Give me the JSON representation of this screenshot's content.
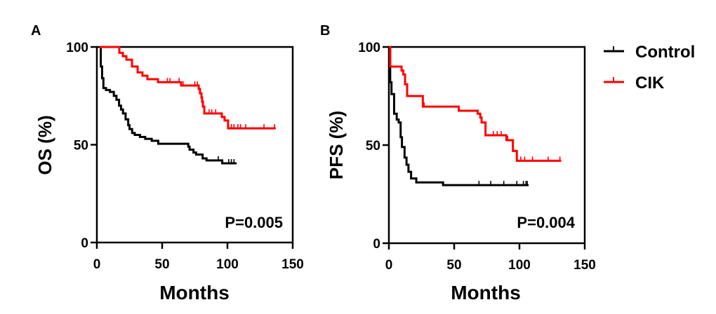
{
  "legend": {
    "items": [
      {
        "label": "Control",
        "color": "#000000"
      },
      {
        "label": "CIK",
        "color": "#ff0000"
      }
    ]
  },
  "chart_data": [
    {
      "type": "line",
      "subtype": "kaplan-meier step",
      "panel_label": "A",
      "title": "",
      "xlabel": "Months",
      "ylabel": "OS (%)",
      "xlim": [
        0,
        150
      ],
      "ylim": [
        0,
        100
      ],
      "xticks": [
        0,
        50,
        100,
        150
      ],
      "yticks": [
        0,
        50,
        100
      ],
      "grid": false,
      "annotation": "P=0.005",
      "series": [
        {
          "name": "Control",
          "color": "#000000",
          "points": [
            [
              2,
              100
            ],
            [
              3,
              90
            ],
            [
              4,
              84
            ],
            [
              5,
              79
            ],
            [
              7,
              78
            ],
            [
              10,
              77
            ],
            [
              13,
              75
            ],
            [
              15,
              73
            ],
            [
              17,
              70
            ],
            [
              18.5,
              68
            ],
            [
              20,
              66
            ],
            [
              22,
              63
            ],
            [
              24,
              60
            ],
            [
              25,
              58
            ],
            [
              27,
              56
            ],
            [
              29,
              55
            ],
            [
              33,
              54
            ],
            [
              37,
              53
            ],
            [
              42,
              52
            ],
            [
              47,
              50.5
            ],
            [
              70,
              49
            ],
            [
              71,
              47.5
            ],
            [
              74,
              46
            ],
            [
              76,
              45
            ],
            [
              81,
              43
            ],
            [
              84,
              42
            ],
            [
              96,
              40.5
            ],
            [
              107,
              40.5
            ]
          ],
          "censor_ticks": [
            93,
            101,
            103,
            105
          ]
        },
        {
          "name": "CIK",
          "color": "#ff0000",
          "points": [
            [
              2,
              100
            ],
            [
              15.6,
              100
            ],
            [
              17.2,
              97
            ],
            [
              19.9,
              95.3
            ],
            [
              22.6,
              93.5
            ],
            [
              26.9,
              90
            ],
            [
              31.2,
              87
            ],
            [
              34.9,
              85.3
            ],
            [
              38.7,
              83.5
            ],
            [
              46.8,
              82
            ],
            [
              64.5,
              80.3
            ],
            [
              78,
              78.5
            ],
            [
              79,
              76.3
            ],
            [
              80.1,
              74.2
            ],
            [
              80.6,
              72
            ],
            [
              81.2,
              69.5
            ],
            [
              82.3,
              66
            ],
            [
              95.7,
              64.2
            ],
            [
              97.8,
              62.4
            ],
            [
              100.5,
              58.4
            ],
            [
              137,
              58.4
            ]
          ],
          "censor_ticks": [
            54,
            56,
            63,
            66,
            75,
            77,
            86,
            88,
            91,
            103,
            105,
            108,
            110,
            114,
            128,
            136
          ]
        }
      ]
    },
    {
      "type": "line",
      "subtype": "kaplan-meier step",
      "panel_label": "B",
      "title": "",
      "xlabel": "Months",
      "ylabel": "PFS (%)",
      "xlim": [
        0,
        150
      ],
      "ylim": [
        0,
        100
      ],
      "xticks": [
        0,
        50,
        100,
        150
      ],
      "yticks": [
        0,
        50,
        100
      ],
      "grid": false,
      "annotation": "P=0.004",
      "series": [
        {
          "name": "Control",
          "color": "#000000",
          "points": [
            [
              0,
              100
            ],
            [
              1,
              82
            ],
            [
              2,
              76
            ],
            [
              4,
              66
            ],
            [
              6,
              63
            ],
            [
              7.5,
              61.5
            ],
            [
              9,
              54
            ],
            [
              10,
              49
            ],
            [
              12,
              43.6
            ],
            [
              13.5,
              40
            ],
            [
              15,
              36.4
            ],
            [
              17,
              33
            ],
            [
              21,
              31
            ],
            [
              41,
              31
            ],
            [
              41.5,
              29.6
            ],
            [
              107,
              29.6
            ]
          ],
          "censor_ticks": [
            69,
            78,
            88,
            98,
            103,
            105,
            106
          ]
        },
        {
          "name": "CIK",
          "color": "#ff0000",
          "points": [
            [
              0,
              100
            ],
            [
              1,
              90
            ],
            [
              8.6,
              90
            ],
            [
              9.7,
              88
            ],
            [
              11,
              86
            ],
            [
              12.4,
              81
            ],
            [
              14,
              75
            ],
            [
              25.8,
              75
            ],
            [
              26,
              69.6
            ],
            [
              53,
              69.6
            ],
            [
              53.5,
              67.5
            ],
            [
              66,
              67.5
            ],
            [
              68,
              66
            ],
            [
              70,
              64
            ],
            [
              71,
              61.5
            ],
            [
              74,
              55
            ],
            [
              89,
              55
            ],
            [
              90,
              52.5
            ],
            [
              95,
              47
            ],
            [
              98,
              42
            ],
            [
              132,
              42
            ]
          ],
          "censor_ticks": [
            27,
            68,
            80,
            83,
            86,
            91,
            101,
            104,
            110,
            122,
            131
          ]
        }
      ]
    }
  ]
}
